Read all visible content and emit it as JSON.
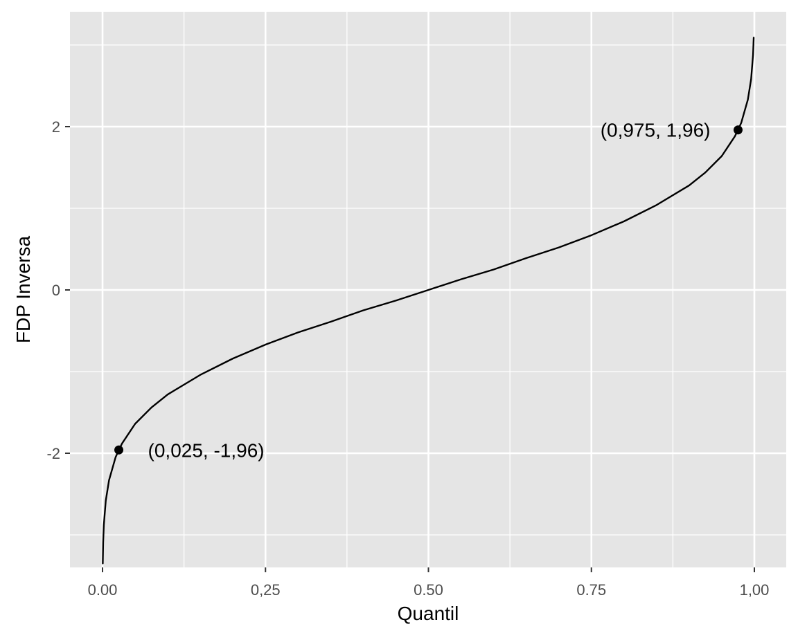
{
  "chart_data": {
    "type": "line",
    "title": "",
    "xlabel": "Quantil",
    "ylabel": "FDP Inversa",
    "xlim": [
      0,
      1
    ],
    "ylim": [
      -3.4,
      3.0
    ],
    "x_ticks": [
      0,
      0.25,
      0.5,
      0.75,
      1.0
    ],
    "x_tick_labels": [
      "0.00",
      "0,25",
      "0.50",
      "0.75",
      "1,00"
    ],
    "y_ticks": [
      -2,
      0,
      2
    ],
    "y_tick_labels": [
      "-2",
      "0",
      "2"
    ],
    "grid": true,
    "legend": "none",
    "series": [
      {
        "x": [
          0.0004,
          0.001,
          0.002,
          0.005,
          0.01,
          0.02,
          0.025,
          0.03,
          0.05,
          0.075,
          0.1,
          0.15,
          0.2,
          0.25,
          0.3,
          0.35,
          0.4,
          0.45,
          0.5,
          0.55,
          0.6,
          0.65,
          0.7,
          0.75,
          0.8,
          0.85,
          0.9,
          0.925,
          0.95,
          0.97,
          0.975,
          0.98,
          0.99,
          0.995,
          0.998,
          0.999
        ],
        "y": [
          -3.35,
          -3.09,
          -2.88,
          -2.58,
          -2.33,
          -2.05,
          -1.96,
          -1.88,
          -1.64,
          -1.44,
          -1.28,
          -1.04,
          -0.84,
          -0.67,
          -0.52,
          -0.39,
          -0.25,
          -0.13,
          0,
          0.13,
          0.25,
          0.39,
          0.52,
          0.67,
          0.84,
          1.04,
          1.28,
          1.44,
          1.64,
          1.88,
          1.96,
          2.05,
          2.33,
          2.58,
          2.88,
          3.09
        ]
      }
    ],
    "points": [
      {
        "x": 0.025,
        "y": -1.96,
        "label": "(0,025, -1,96)"
      },
      {
        "x": 0.975,
        "y": 1.96,
        "label": "(0,975, 1,96)"
      }
    ],
    "colors": {
      "panel": "#e5e5e5",
      "grid": "#ffffff",
      "line": "#000000",
      "tick_text": "#4d4d4d",
      "tick_mark": "#333333"
    }
  }
}
